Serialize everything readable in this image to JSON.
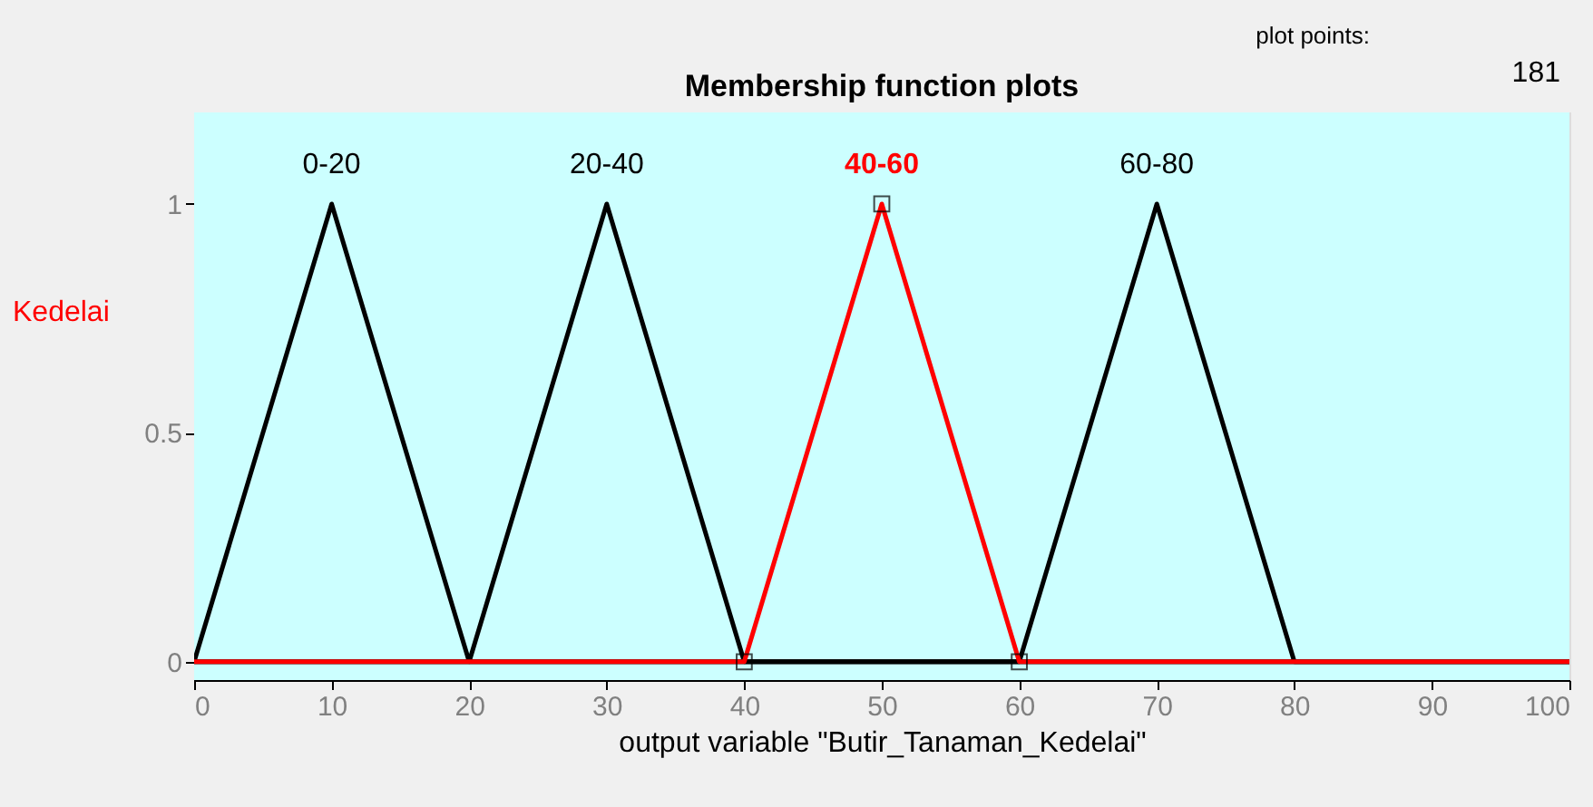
{
  "chart_data": {
    "type": "line",
    "title": "Membership function plots",
    "xlabel": "output variable \"Butir_Tanaman_Kedelai\"",
    "xlim": [
      0,
      100
    ],
    "xticks": [
      0,
      10,
      20,
      30,
      40,
      50,
      60,
      70,
      80,
      90,
      100
    ],
    "ylim": [
      -0.04,
      1.2
    ],
    "yticks": [
      0,
      0.5,
      1
    ],
    "line_style": "solid",
    "series": [
      {
        "name": "0-20",
        "color": "#000000",
        "x": [
          0,
          10,
          20,
          100
        ],
        "values": [
          0,
          1,
          0,
          0
        ]
      },
      {
        "name": "20-40",
        "color": "#000000",
        "x": [
          0,
          20,
          30,
          40,
          100
        ],
        "values": [
          0,
          0,
          1,
          0,
          0
        ]
      },
      {
        "name": "60-80",
        "color": "#000000",
        "x": [
          0,
          60,
          70,
          80,
          100
        ],
        "values": [
          0,
          0,
          1,
          0,
          0
        ]
      },
      {
        "name": "40-60",
        "color": "#ff0000",
        "x": [
          0,
          40,
          50,
          60,
          100
        ],
        "values": [
          0,
          0,
          1,
          0,
          0
        ]
      },
      {
        "type": "scatter",
        "marker": "square",
        "color": "#000000",
        "x": [
          40,
          50,
          60
        ],
        "values": [
          0,
          1,
          0
        ]
      }
    ],
    "annotations": [
      "plot points:",
      "181",
      "Kedelai"
    ]
  }
}
